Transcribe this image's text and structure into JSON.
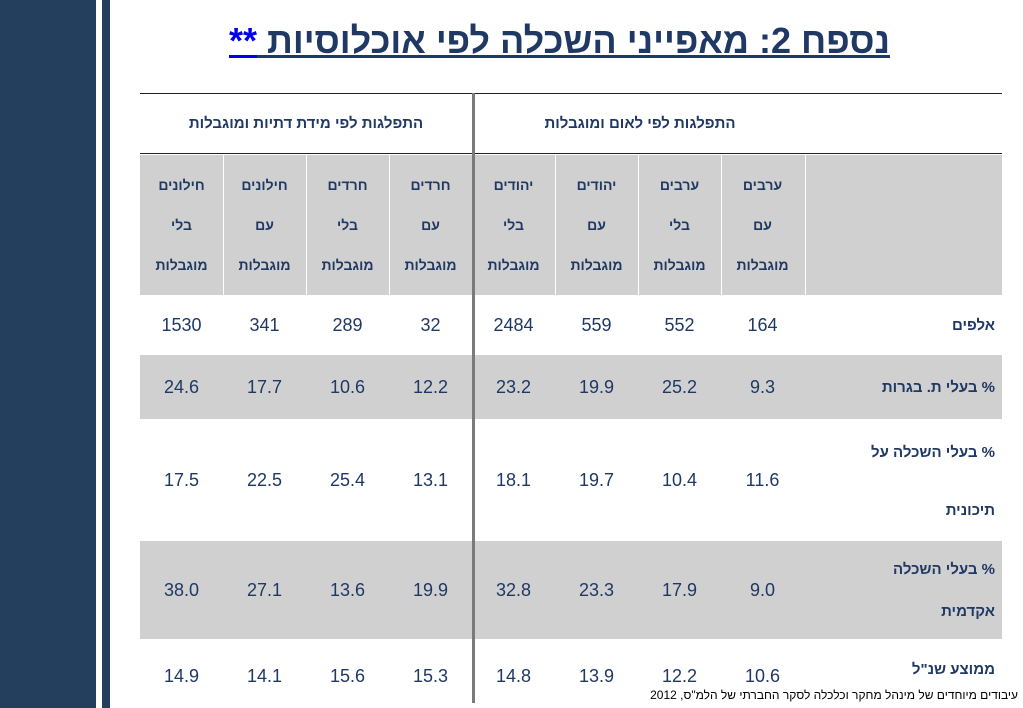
{
  "title": {
    "text": "נספח 2: מאפייני השכלה לפי אוכלוסיות",
    "link": "**"
  },
  "groups": {
    "nationality": "התפלגות לפי לאום ומוגבלות",
    "religiosity": "התפלגות לפי מידת דתיות ומוגבלות"
  },
  "columns": [
    {
      "l1": "ערבים",
      "l2": "עם",
      "l3": "מוגבלות"
    },
    {
      "l1": "ערבים",
      "l2": "בלי",
      "l3": "מוגבלות"
    },
    {
      "l1": "יהודים",
      "l2": "עם",
      "l3": "מוגבלות"
    },
    {
      "l1": "יהודים",
      "l2": "בלי",
      "l3": "מוגבלות"
    },
    {
      "l1": "חרדים",
      "l2": "עם",
      "l3": "מוגבלות"
    },
    {
      "l1": "חרדים",
      "l2": "בלי",
      "l3": "מוגבלות"
    },
    {
      "l1": "חילונים",
      "l2": "עם",
      "l3": "מוגבלות"
    },
    {
      "l1": "חילונים",
      "l2": "בלי",
      "l3": "מוגבלות"
    }
  ],
  "rows": [
    {
      "label1": "אלפים",
      "label2": "",
      "values": [
        "164",
        "552",
        "559",
        "2484",
        "32",
        "289",
        "341",
        "1530"
      ]
    },
    {
      "label1": "% בעלי ת. בגרות",
      "label2": "",
      "values": [
        "9.3",
        "25.2",
        "19.9",
        "23.2",
        "12.2",
        "10.6",
        "17.7",
        "24.6"
      ]
    },
    {
      "label1": "% בעלי השכלה על",
      "label2": "תיכונית",
      "values": [
        "11.6",
        "10.4",
        "19.7",
        "18.1",
        "13.1",
        "25.4",
        "22.5",
        "17.5"
      ]
    },
    {
      "label1": "% בעלי השכלה",
      "label2": "אקדמית",
      "values": [
        "9.0",
        "17.9",
        "23.3",
        "32.8",
        "19.9",
        "13.6",
        "27.1",
        "38.0"
      ]
    },
    {
      "label1": "ממוצע שנ\"ל",
      "label2": "",
      "values": [
        "10.6",
        "12.2",
        "13.9",
        "14.8",
        "15.3",
        "15.6",
        "14.1",
        "14.9"
      ]
    }
  ],
  "footnote": "עיבודים מיוחדים של מינהל מחקר וכלכלה לסקר החברתי של הלמ\"ס, 2012",
  "colors": {
    "sidebar": "#243f5e",
    "text": "#1f3864",
    "band": "#d0d0d0",
    "divider": "#7a7a7a"
  }
}
